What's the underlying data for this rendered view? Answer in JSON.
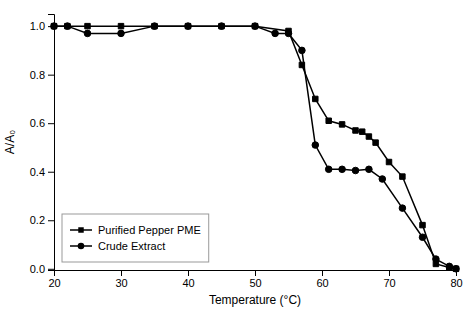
{
  "chart_data": {
    "type": "line",
    "x_label": "Temperature (°C)",
    "y_label": "A/A₀",
    "series": [
      {
        "name": "Purified Pepper PME",
        "color": "#000000",
        "marker": "square",
        "x": [
          20,
          22,
          25,
          30,
          35,
          40,
          45,
          50,
          55,
          57,
          59,
          61,
          63,
          65,
          66,
          67,
          68,
          70,
          72,
          75,
          77,
          79,
          80
        ],
        "values": [
          1.0,
          1.0,
          1.0,
          1.0,
          1.0,
          1.0,
          1.0,
          1.0,
          0.98,
          0.84,
          0.7,
          0.61,
          0.595,
          0.57,
          0.565,
          0.545,
          0.52,
          0.44,
          0.38,
          0.18,
          0.02,
          0.005,
          0.0
        ]
      },
      {
        "name": "Crude Extract",
        "color": "#000000",
        "marker": "circle",
        "x": [
          20,
          22,
          25,
          30,
          35,
          40,
          45,
          50,
          53,
          55,
          57,
          59,
          61,
          63,
          65,
          67,
          69,
          72,
          75,
          77,
          79,
          80
        ],
        "values": [
          1.0,
          1.0,
          0.97,
          0.97,
          1.0,
          1.0,
          1.0,
          1.0,
          0.97,
          0.97,
          0.9,
          0.51,
          0.41,
          0.41,
          0.405,
          0.41,
          0.37,
          0.25,
          0.13,
          0.04,
          0.01,
          0.0
        ]
      }
    ],
    "xlim": [
      20,
      80
    ],
    "ylim": [
      -0.005,
      1.05
    ],
    "xticks": [
      20,
      30,
      40,
      50,
      60,
      70,
      80
    ],
    "yticks": [
      {
        "value": 0.0,
        "label": "0.0"
      },
      0.2,
      0.4,
      0.6,
      0.8,
      {
        "value": 1.0,
        "label": "1.0"
      }
    ],
    "grid": false,
    "legend": "lower left"
  }
}
